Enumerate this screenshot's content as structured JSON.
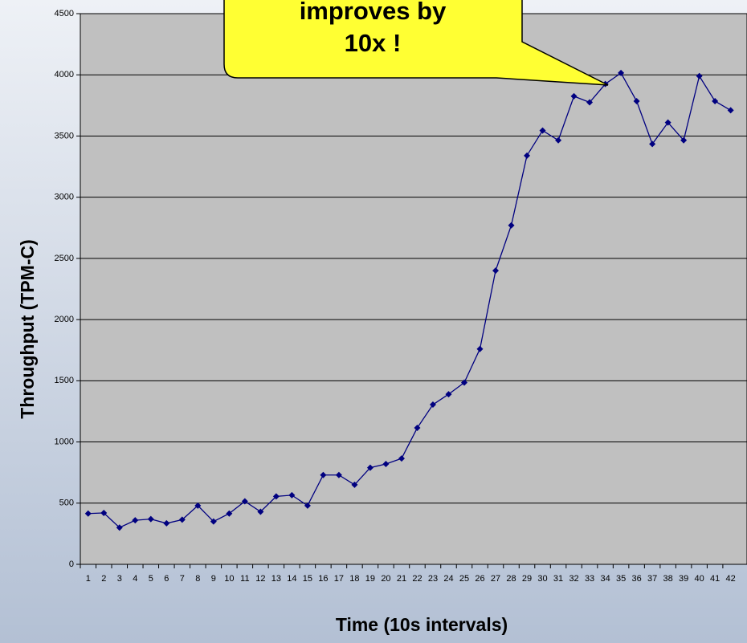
{
  "chart_data": {
    "type": "line",
    "x_label": "Time (10s intervals)",
    "y_label": "Throughput (TPM-C)",
    "annotation": {
      "lines": [
        "improves by",
        "10x !"
      ],
      "target": 34
    },
    "categories": [
      "1",
      "2",
      "3",
      "4",
      "5",
      "6",
      "7",
      "8",
      "9",
      "10",
      "11",
      "12",
      "13",
      "14",
      "15",
      "16",
      "17",
      "18",
      "19",
      "20",
      "21",
      "22",
      "23",
      "24",
      "25",
      "26",
      "27",
      "28",
      "29",
      "30",
      "31",
      "32",
      "33",
      "34",
      "35",
      "36",
      "37",
      "38",
      "39",
      "40",
      "41",
      "42"
    ],
    "series": [
      {
        "color": "#000080",
        "values": [
          415,
          420,
          300,
          360,
          370,
          335,
          365,
          480,
          350,
          415,
          515,
          430,
          555,
          565,
          480,
          730,
          730,
          650,
          790,
          820,
          865,
          1115,
          1305,
          1390,
          1485,
          1760,
          2400,
          2770,
          3340,
          3545,
          3465,
          3825,
          3775,
          3925,
          4015,
          3785,
          3435,
          3610,
          3465,
          3990,
          3785,
          3710
        ]
      }
    ],
    "ylim": [
      0,
      4500
    ],
    "yticks": [
      0,
      500,
      1000,
      1500,
      2000,
      2500,
      3000,
      3500,
      4000,
      4500
    ],
    "grid": true
  }
}
